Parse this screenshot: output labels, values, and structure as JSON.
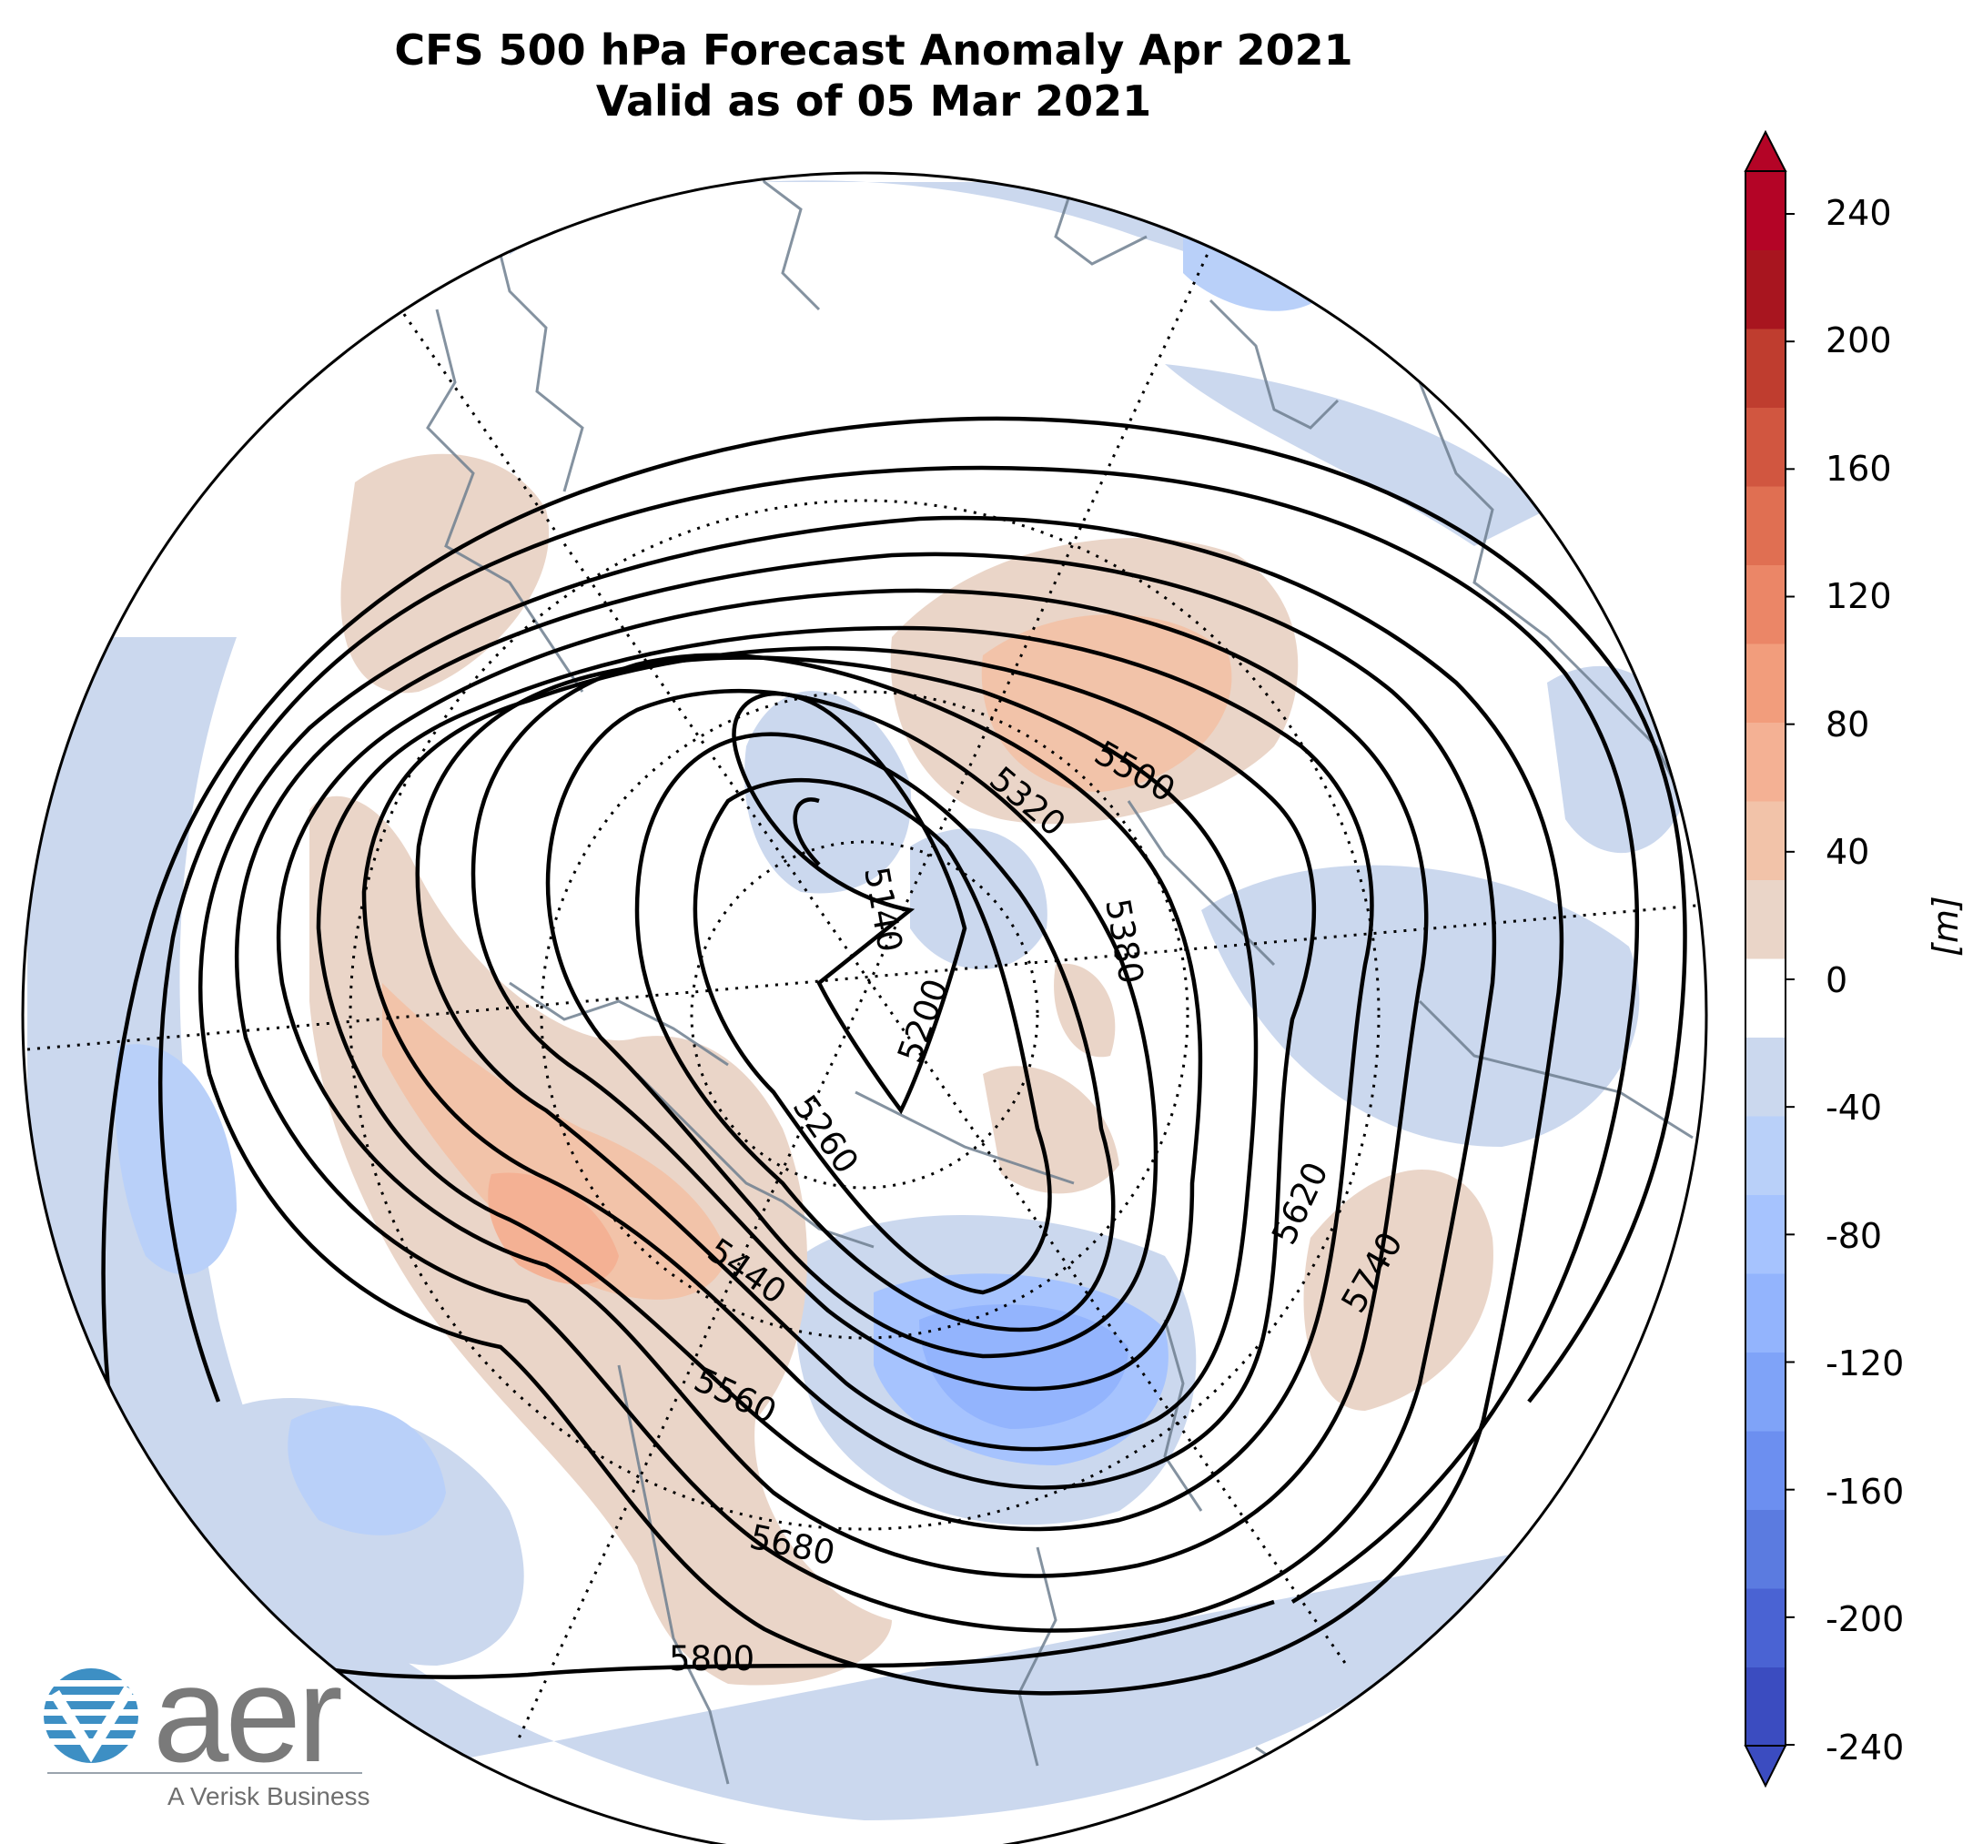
{
  "title": {
    "line1": "CFS 500 hPa Forecast Anomaly Apr 2021",
    "line2": "Valid as of 05 Mar 2021"
  },
  "colorbar": {
    "unit": "[m]",
    "ticks": [
      "240",
      "200",
      "160",
      "120",
      "80",
      "40",
      "0",
      "-40",
      "-80",
      "-120",
      "-160",
      "-200",
      "-240"
    ],
    "colors": [
      "#3b4cc0",
      "#4a63d3",
      "#5b7be0",
      "#6c8ff0",
      "#7fa3f8",
      "#93b4fd",
      "#a6c3fe",
      "#b9d0f9",
      "#cbd8ee",
      "#ffffff",
      "#ead5c8",
      "#f2c3a9",
      "#f4b194",
      "#f29d7c",
      "#eb8667",
      "#e06f52",
      "#d15640",
      "#bf3d2f",
      "#a8151f",
      "#b40426"
    ]
  },
  "contour_labels": [
    "5140",
    "5200",
    "5260",
    "5320",
    "5380",
    "5440",
    "5500",
    "5560",
    "5620",
    "5680",
    "5740",
    "5800"
  ],
  "logo": {
    "word": "aer",
    "tagline": "A Verisk Business"
  }
}
